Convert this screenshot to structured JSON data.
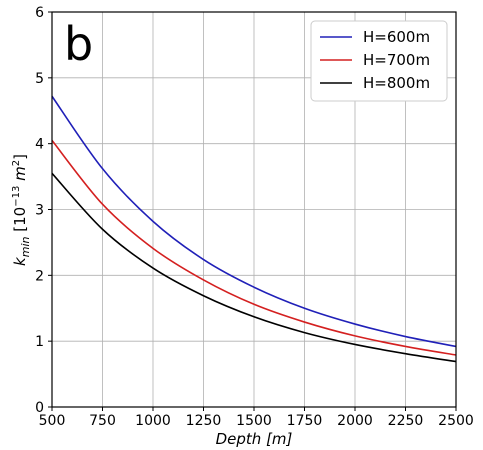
{
  "chart_data": {
    "type": "line",
    "panel_label": "b",
    "xlabel": {
      "main": "Depth",
      "unit": "[m]"
    },
    "ylabel": {
      "var": "k",
      "sub": "min",
      "prefix": "[10",
      "exp": "−13",
      "unit": "m",
      "unit_exp": "2",
      "suffix": "]"
    },
    "xlim": [
      500,
      2500
    ],
    "ylim": [
      0,
      6
    ],
    "xticks": [
      500,
      750,
      1000,
      1250,
      1500,
      1750,
      2000,
      2250,
      2500
    ],
    "yticks": [
      0,
      1,
      2,
      3,
      4,
      5,
      6
    ],
    "grid": true,
    "legend_position": "top-right",
    "x": [
      500,
      750,
      1000,
      1250,
      1500,
      1750,
      2000,
      2250,
      2500
    ],
    "series": [
      {
        "name": "H=600m",
        "color": "#2020b8",
        "values": [
          4.72,
          3.62,
          2.82,
          2.24,
          1.82,
          1.5,
          1.26,
          1.07,
          0.92
        ]
      },
      {
        "name": "H=700m",
        "color": "#d42020",
        "values": [
          4.05,
          3.08,
          2.41,
          1.93,
          1.56,
          1.29,
          1.08,
          0.92,
          0.79
        ]
      },
      {
        "name": "H=800m",
        "color": "#000000",
        "values": [
          3.55,
          2.7,
          2.11,
          1.69,
          1.37,
          1.13,
          0.95,
          0.81,
          0.69
        ]
      }
    ]
  }
}
